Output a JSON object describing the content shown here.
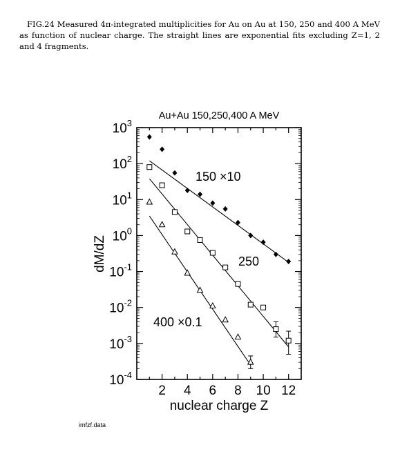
{
  "caption": "FIG.24 Measured 4π-integrated multiplicities for Au on Au at 150, 250 and 400 A MeV as function of nuclear charge. The straight lines are exponential fits excluding Z=1, 2 and 4 fragments.",
  "footer": "imfzf.data",
  "chart_data": {
    "type": "scatter",
    "title": "Au+Au 150,250,400 A MeV",
    "xlabel": "nuclear charge Z",
    "ylabel": "dM/dZ",
    "xlim": [
      0,
      13
    ],
    "ylim": [
      0.0001,
      1000
    ],
    "yscale": "log",
    "x_ticks": [
      2,
      4,
      6,
      8,
      10,
      12
    ],
    "y_ticks": [
      {
        "value": 1000,
        "base": "10",
        "exp": "3"
      },
      {
        "value": 100,
        "base": "10",
        "exp": "2"
      },
      {
        "value": 10,
        "base": "10",
        "exp": "1"
      },
      {
        "value": 1,
        "base": "10",
        "exp": "0"
      },
      {
        "value": 0.1,
        "base": "10",
        "exp": "-1"
      },
      {
        "value": 0.01,
        "base": "10",
        "exp": "-2"
      },
      {
        "value": 0.001,
        "base": "10",
        "exp": "-3"
      },
      {
        "value": 0.0001,
        "base": "10",
        "exp": "-4"
      }
    ],
    "series": [
      {
        "label": "150 ×10",
        "marker": "diamond",
        "points": [
          [
            1,
            550
          ],
          [
            2,
            250
          ],
          [
            3,
            55
          ],
          [
            4,
            18
          ],
          [
            5,
            14
          ],
          [
            6,
            8
          ],
          [
            7,
            5.5
          ],
          [
            8,
            2.3
          ],
          [
            9,
            1.0
          ],
          [
            10,
            0.65
          ],
          [
            11,
            0.3
          ],
          [
            12,
            0.19
          ]
        ],
        "fit": [
          [
            1,
            120
          ],
          [
            12,
            0.18
          ]
        ]
      },
      {
        "label": "250",
        "marker": "square",
        "points": [
          [
            1,
            80
          ],
          [
            2,
            25
          ],
          [
            3,
            4.5
          ],
          [
            4,
            1.3
          ],
          [
            5,
            0.75
          ],
          [
            6,
            0.33
          ],
          [
            7,
            0.13
          ],
          [
            8,
            0.045
          ],
          [
            9,
            0.012
          ],
          [
            10,
            0.01
          ],
          [
            11,
            0.0025
          ],
          [
            12,
            0.0012
          ]
        ],
        "fit": [
          [
            1,
            38
          ],
          [
            12,
            0.0008
          ]
        ]
      },
      {
        "label": "400 ×0.1",
        "marker": "triangle",
        "points": [
          [
            1,
            8.5
          ],
          [
            2,
            2.0
          ],
          [
            3,
            0.35
          ],
          [
            4,
            0.09
          ],
          [
            5,
            0.03
          ],
          [
            6,
            0.011
          ],
          [
            7,
            0.0045
          ],
          [
            8,
            0.0015
          ],
          [
            9,
            0.0003
          ]
        ],
        "fit": [
          [
            1,
            3.5
          ],
          [
            9,
            0.00025
          ]
        ]
      }
    ],
    "error_bars": [
      {
        "x": 11,
        "y": 0.0025,
        "low": 0.0015,
        "high": 0.004
      },
      {
        "x": 12,
        "y": 0.0012,
        "low": 0.0005,
        "high": 0.0022
      },
      {
        "x": 9,
        "y": 0.0003,
        "low": 0.0002,
        "high": 0.00045
      }
    ]
  }
}
